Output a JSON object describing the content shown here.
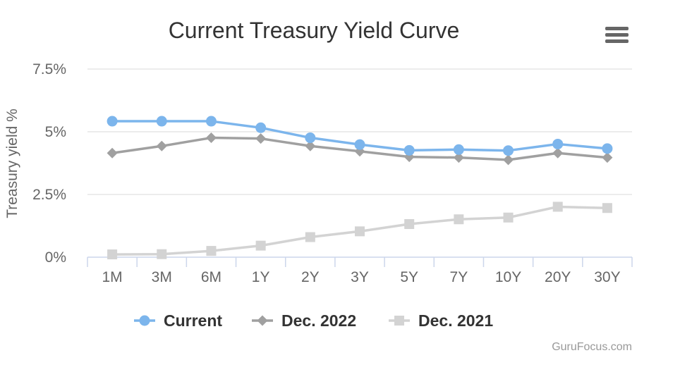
{
  "chart_data": {
    "type": "line",
    "title": "Current Treasury Yield Curve",
    "xlabel": "",
    "ylabel": "Treasury yield %",
    "categories": [
      "1M",
      "3M",
      "6M",
      "1Y",
      "2Y",
      "3Y",
      "5Y",
      "7Y",
      "10Y",
      "20Y",
      "30Y"
    ],
    "y_ticks": [
      "0%",
      "2.5%",
      "5%",
      "7.5%"
    ],
    "y_tick_values": [
      0,
      2.5,
      5,
      7.5
    ],
    "ylim": [
      0,
      7.5
    ],
    "grid": true,
    "legend_position": "bottom",
    "series": [
      {
        "name": "Current",
        "color": "#7cb5ec",
        "marker": "circle",
        "values": [
          5.42,
          5.42,
          5.42,
          5.16,
          4.76,
          4.49,
          4.26,
          4.29,
          4.25,
          4.51,
          4.33
        ]
      },
      {
        "name": "Dec. 2022",
        "color": "#a0a0a0",
        "marker": "diamond",
        "values": [
          4.15,
          4.43,
          4.76,
          4.73,
          4.43,
          4.22,
          4.0,
          3.97,
          3.88,
          4.15,
          3.97
        ]
      },
      {
        "name": "Dec. 2021",
        "color": "#d3d3d3",
        "marker": "square",
        "values": [
          0.11,
          0.12,
          0.25,
          0.46,
          0.8,
          1.03,
          1.32,
          1.51,
          1.58,
          2.01,
          1.96
        ]
      }
    ]
  },
  "credits": "GuruFocus.com",
  "menu_icon": "hamburger-menu-icon"
}
